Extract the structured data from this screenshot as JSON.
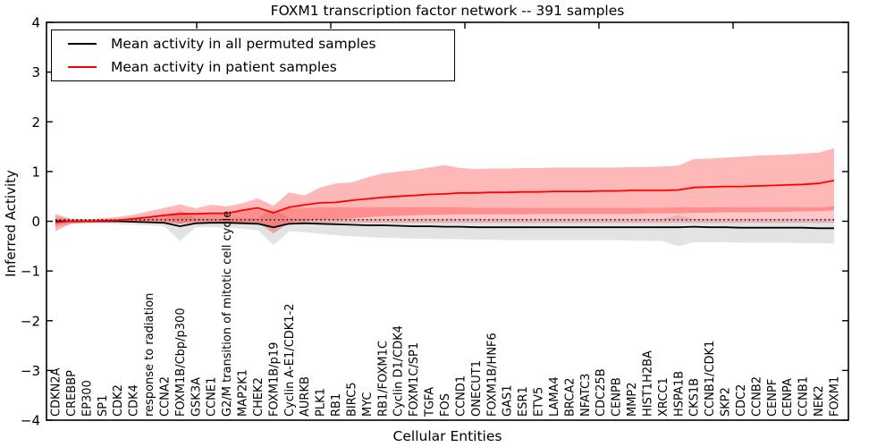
{
  "figure": {
    "title": "FOXM1 transcription factor network -- 391 samples",
    "xlabel": "Cellular Entities",
    "ylabel": "Inferred Activity"
  },
  "legend": {
    "items": [
      {
        "label": "Mean activity in all permuted samples",
        "color": "#000000"
      },
      {
        "label": "Mean activity in patient samples",
        "color": "#ff0000"
      }
    ]
  },
  "chart_data": {
    "type": "line",
    "title": "FOXM1 transcription factor network -- 391 samples",
    "xlabel": "Cellular Entities",
    "ylabel": "Inferred Activity",
    "ylim": [
      -4,
      4
    ],
    "grid": false,
    "legend_position": "upper left",
    "yticks": [
      {
        "value": -4,
        "label": "−4"
      },
      {
        "value": -3,
        "label": "−3"
      },
      {
        "value": -2,
        "label": "−2"
      },
      {
        "value": -1,
        "label": "−1"
      },
      {
        "value": 0,
        "label": "0"
      },
      {
        "value": 1,
        "label": "1"
      },
      {
        "value": 2,
        "label": "2"
      },
      {
        "value": 3,
        "label": "3"
      },
      {
        "value": 4,
        "label": "4"
      }
    ],
    "categories": [
      "CDKN2A",
      "CREBBP",
      "EP300",
      "SP1",
      "CDK2",
      "CDK4",
      "response to radiation",
      "CCNA2",
      "FOXM1B/Cbp/p300",
      "GSK3A",
      "CCNE1",
      "G2/M transition of mitotic cell cycle",
      "MAP2K1",
      "CHEK2",
      "FOXM1B/p19",
      "Cyclin A-E1/CDK1-2",
      "AURKB",
      "PLK1",
      "RB1",
      "BIRC5",
      "MYC",
      "RB1/FOXM1C",
      "Cyclin D1/CDK4",
      "FOXM1C/SP1",
      "TGFA",
      "FOS",
      "CCND1",
      "ONECUT1",
      "FOXM1B/HNF6",
      "GAS1",
      "ESR1",
      "ETV5",
      "LAMA4",
      "BRCA2",
      "NFATC3",
      "CDC25B",
      "CENPB",
      "MMP2",
      "HIST1H2BA",
      "XRCC1",
      "HSPA1B",
      "CKS1B",
      "CCNB1/CDK1",
      "SKP2",
      "CDC2",
      "CCNB2",
      "CENPF",
      "CENPA",
      "CCNB1",
      "NEK2",
      "FOXM1"
    ],
    "baseline_dotted": 0.03,
    "series": [
      {
        "name": "Mean activity in patient samples",
        "color": "#ff0000",
        "values": [
          -0.02,
          0.0,
          0.0,
          0.01,
          0.02,
          0.05,
          0.08,
          0.12,
          0.15,
          0.15,
          0.16,
          0.16,
          0.22,
          0.27,
          0.17,
          0.28,
          0.33,
          0.37,
          0.38,
          0.42,
          0.45,
          0.48,
          0.5,
          0.52,
          0.54,
          0.55,
          0.57,
          0.57,
          0.58,
          0.58,
          0.59,
          0.59,
          0.6,
          0.6,
          0.6,
          0.61,
          0.61,
          0.62,
          0.62,
          0.62,
          0.63,
          0.68,
          0.69,
          0.7,
          0.7,
          0.71,
          0.72,
          0.73,
          0.74,
          0.76,
          0.82
        ]
      },
      {
        "name": "Mean activity in all permuted samples",
        "color": "#000000",
        "values": [
          0.0,
          0.0,
          0.0,
          0.0,
          0.0,
          -0.01,
          -0.02,
          -0.03,
          -0.1,
          -0.04,
          -0.03,
          -0.03,
          -0.04,
          -0.05,
          -0.12,
          -0.05,
          -0.04,
          -0.05,
          -0.06,
          -0.07,
          -0.08,
          -0.08,
          -0.09,
          -0.1,
          -0.1,
          -0.11,
          -0.11,
          -0.12,
          -0.12,
          -0.12,
          -0.12,
          -0.12,
          -0.12,
          -0.12,
          -0.12,
          -0.12,
          -0.12,
          -0.12,
          -0.12,
          -0.12,
          -0.12,
          -0.11,
          -0.12,
          -0.12,
          -0.13,
          -0.13,
          -0.13,
          -0.13,
          -0.13,
          -0.14,
          -0.14
        ]
      }
    ],
    "bands": [
      {
        "name": "permuted-band",
        "color": "rgba(60,60,60,0.14)",
        "upper": [
          0.1,
          0.05,
          0.04,
          0.04,
          0.04,
          0.04,
          0.05,
          0.05,
          0.22,
          0.06,
          0.05,
          0.05,
          0.06,
          0.06,
          0.26,
          0.06,
          0.05,
          0.05,
          0.05,
          0.05,
          0.05,
          0.05,
          0.05,
          0.05,
          0.05,
          0.05,
          0.05,
          0.05,
          0.05,
          0.05,
          0.05,
          0.05,
          0.05,
          0.05,
          0.05,
          0.05,
          0.05,
          0.05,
          0.05,
          0.05,
          0.12,
          0.05,
          0.05,
          0.05,
          0.05,
          0.05,
          0.05,
          0.05,
          0.05,
          0.05,
          0.05
        ],
        "lower": [
          -0.12,
          -0.06,
          -0.05,
          -0.05,
          -0.06,
          -0.07,
          -0.08,
          -0.1,
          -0.4,
          -0.12,
          -0.12,
          -0.13,
          -0.15,
          -0.18,
          -0.48,
          -0.2,
          -0.22,
          -0.25,
          -0.28,
          -0.3,
          -0.32,
          -0.33,
          -0.34,
          -0.35,
          -0.35,
          -0.36,
          -0.36,
          -0.37,
          -0.37,
          -0.38,
          -0.38,
          -0.38,
          -0.38,
          -0.38,
          -0.38,
          -0.38,
          -0.38,
          -0.39,
          -0.39,
          -0.4,
          -0.5,
          -0.42,
          -0.42,
          -0.42,
          -0.43,
          -0.43,
          -0.43,
          -0.43,
          -0.44,
          -0.44,
          -0.45
        ]
      },
      {
        "name": "patient-band",
        "color": "rgba(255,0,0,0.28)",
        "upper": [
          0.15,
          0.05,
          0.04,
          0.06,
          0.09,
          0.13,
          0.2,
          0.27,
          0.34,
          0.26,
          0.33,
          0.3,
          0.36,
          0.46,
          0.31,
          0.58,
          0.52,
          0.68,
          0.76,
          0.78,
          0.88,
          0.96,
          1.0,
          1.03,
          1.08,
          1.13,
          1.07,
          1.05,
          1.06,
          1.06,
          1.07,
          1.07,
          1.08,
          1.08,
          1.08,
          1.08,
          1.08,
          1.09,
          1.09,
          1.1,
          1.12,
          1.25,
          1.26,
          1.28,
          1.3,
          1.32,
          1.33,
          1.34,
          1.36,
          1.38,
          1.47
        ],
        "lower": [
          -0.2,
          -0.05,
          -0.03,
          -0.02,
          -0.02,
          -0.01,
          0.0,
          0.0,
          -0.05,
          0.0,
          0.0,
          -0.02,
          -0.03,
          -0.02,
          -0.25,
          -0.02,
          0.0,
          0.03,
          0.04,
          0.06,
          0.08,
          0.1,
          0.11,
          0.12,
          0.13,
          0.13,
          0.14,
          0.14,
          0.14,
          0.14,
          0.14,
          0.15,
          0.15,
          0.15,
          0.15,
          0.15,
          0.15,
          0.15,
          0.16,
          0.16,
          0.16,
          0.17,
          0.17,
          0.18,
          0.18,
          0.18,
          0.19,
          0.19,
          0.2,
          0.2,
          0.22
        ]
      },
      {
        "name": "patient-band-inner",
        "color": "rgba(255,0,0,0.22)",
        "upper": [
          0.05,
          0.02,
          0.02,
          0.03,
          0.04,
          0.06,
          0.1,
          0.14,
          0.18,
          0.16,
          0.18,
          0.18,
          0.2,
          0.24,
          0.15,
          0.26,
          0.27,
          0.28,
          0.28,
          0.28,
          0.28,
          0.28,
          0.28,
          0.28,
          0.28,
          0.28,
          0.28,
          0.27,
          0.27,
          0.27,
          0.27,
          0.27,
          0.27,
          0.27,
          0.27,
          0.27,
          0.27,
          0.27,
          0.27,
          0.27,
          0.28,
          0.28,
          0.28,
          0.28,
          0.28,
          0.28,
          0.28,
          0.28,
          0.28,
          0.28,
          0.3
        ],
        "lower": [
          -0.08,
          -0.03,
          -0.02,
          -0.01,
          -0.01,
          -0.01,
          -0.01,
          -0.02,
          -0.06,
          -0.02,
          -0.02,
          -0.03,
          -0.04,
          -0.05,
          -0.15,
          -0.04,
          -0.03,
          -0.03,
          -0.03,
          -0.03,
          -0.03,
          -0.03,
          -0.03,
          -0.03,
          -0.03,
          -0.03,
          -0.03,
          -0.03,
          -0.03,
          -0.03,
          -0.03,
          -0.03,
          -0.03,
          -0.03,
          -0.03,
          -0.03,
          -0.03,
          -0.03,
          -0.03,
          -0.03,
          -0.03,
          -0.03,
          -0.03,
          -0.03,
          -0.03,
          -0.03,
          -0.03,
          -0.03,
          -0.03,
          -0.03,
          -0.03
        ]
      }
    ]
  }
}
